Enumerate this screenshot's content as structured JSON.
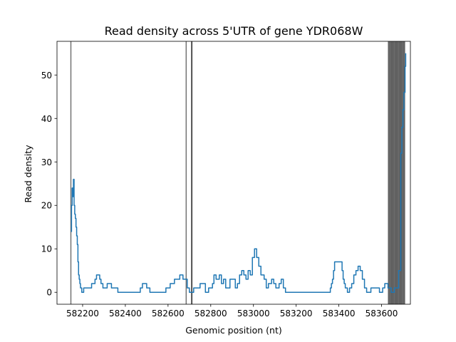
{
  "chart_data": {
    "type": "line",
    "title": "Read density across 5'UTR of gene YDR068W",
    "xlabel": "Genomic position (nt)",
    "ylabel": "Read density",
    "xlim": [
      582080,
      583735
    ],
    "ylim": [
      -2.75,
      57.75
    ],
    "xticks": [
      582200,
      582400,
      582600,
      582800,
      583000,
      583200,
      583400,
      583600
    ],
    "xtick_labels": [
      "582200",
      "582400",
      "582600",
      "582800",
      "583000",
      "583200",
      "583400",
      "583600"
    ],
    "yticks": [
      0,
      10,
      20,
      30,
      40,
      50
    ],
    "ytick_labels": [
      "0",
      "10",
      "20",
      "30",
      "40",
      "50"
    ],
    "grid": false,
    "legend": "none",
    "line_color": "#1f77b4",
    "vline_color": "#000000",
    "vlines": [
      582145,
      582685,
      582710,
      582712,
      583632,
      583636,
      583640,
      583644,
      583648,
      583652,
      583656,
      583660,
      583664,
      583668,
      583672,
      583676,
      583680,
      583684,
      583688,
      583692,
      583696,
      583700,
      583704,
      583708
    ],
    "series": [
      {
        "x": [
          582145,
          582148,
          582151,
          582154,
          582157,
          582160,
          582163,
          582166,
          582169,
          582172,
          582175,
          582178,
          582181,
          582184,
          582187,
          582190,
          582193,
          582196,
          582199,
          582202,
          582205,
          582235,
          582242,
          582250,
          582258,
          582265,
          582272,
          582280,
          582286,
          582295,
          582305,
          582315,
          582325,
          582335,
          582345,
          582355,
          582365,
          582380,
          582390,
          582470,
          582480,
          582500,
          582515,
          582590,
          582610,
          582630,
          582655,
          582670,
          582690,
          582700,
          582712,
          582720,
          582750,
          582760,
          582775,
          582790,
          582808,
          582815,
          582825,
          582840,
          582850,
          582860,
          582870,
          582880,
          582890,
          582910,
          582915,
          582925,
          582935,
          582945,
          582955,
          582965,
          582975,
          582985,
          582995,
          583005,
          583015,
          583025,
          583035,
          583050,
          583060,
          583070,
          583085,
          583095,
          583105,
          583120,
          583130,
          583140,
          583150,
          583160,
          583200,
          583360,
          583365,
          583370,
          583375,
          583380,
          583385,
          583390,
          583410,
          583415,
          583420,
          583425,
          583430,
          583440,
          583450,
          583460,
          583470,
          583480,
          583490,
          583500,
          583510,
          583520,
          583530,
          583540,
          583550,
          583560,
          583575,
          583590,
          583605,
          583615,
          583630,
          583645,
          583660,
          583680,
          583690,
          583695,
          583700,
          583705,
          583710,
          583713
        ],
        "y": [
          14,
          20,
          24,
          22,
          26,
          20,
          18,
          17,
          15,
          13,
          11,
          7,
          4,
          3,
          2,
          1,
          1,
          0,
          0,
          0,
          1,
          1,
          2,
          2,
          3,
          4,
          4,
          3,
          2,
          1,
          1,
          2,
          2,
          1,
          1,
          1,
          0,
          0,
          0,
          1,
          2,
          1,
          0,
          1,
          2,
          3,
          4,
          3,
          1,
          0,
          0,
          1,
          2,
          2,
          0,
          1,
          2,
          4,
          3,
          4,
          2,
          3,
          1,
          1,
          3,
          3,
          1,
          2,
          4,
          5,
          4,
          3,
          5,
          4,
          8,
          10,
          8,
          6,
          4,
          3,
          1,
          2,
          3,
          2,
          1,
          2,
          3,
          1,
          0,
          0,
          0,
          1,
          2,
          3,
          5,
          7,
          7,
          7,
          7,
          5,
          3,
          2,
          1,
          0,
          1,
          2,
          4,
          5,
          6,
          5,
          3,
          1,
          0,
          0,
          1,
          1,
          1,
          0,
          1,
          2,
          1,
          0,
          1,
          5,
          32,
          38,
          42,
          46,
          52,
          55
        ]
      }
    ]
  }
}
